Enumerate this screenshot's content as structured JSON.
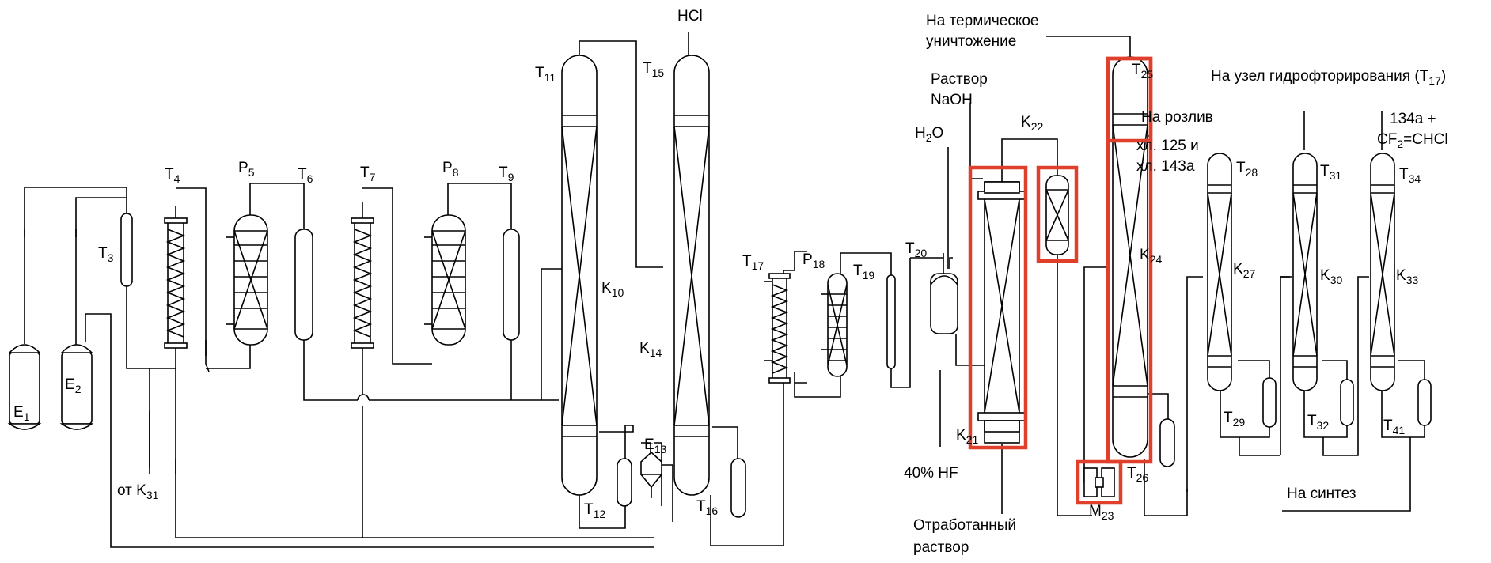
{
  "labels": {
    "E1": [
      "E",
      "1"
    ],
    "E2": [
      "E",
      "2"
    ],
    "T3": [
      "T",
      "3"
    ],
    "T4": [
      "T",
      "4"
    ],
    "P5": [
      "P",
      "5"
    ],
    "T6": [
      "T",
      "6"
    ],
    "T7": [
      "T",
      "7"
    ],
    "P8": [
      "P",
      "8"
    ],
    "T9": [
      "T",
      "9"
    ],
    "K10": [
      "K",
      "10"
    ],
    "T11": [
      "T",
      "11"
    ],
    "T12": [
      "T",
      "12"
    ],
    "E13": [
      "E",
      "13"
    ],
    "K14": [
      "K",
      "14"
    ],
    "T15": [
      "T",
      "15"
    ],
    "T16": [
      "T",
      "16"
    ],
    "T17": [
      "T",
      "17"
    ],
    "P18": [
      "P",
      "18"
    ],
    "T19": [
      "T",
      "19"
    ],
    "T20": [
      "T",
      "20"
    ],
    "K21": [
      "K",
      "21"
    ],
    "K22": [
      "K",
      "22"
    ],
    "M23": [
      "M",
      "23"
    ],
    "K24": [
      "K",
      "24"
    ],
    "T25": [
      "T",
      "25"
    ],
    "T26": [
      "T",
      "26"
    ],
    "K27": [
      "K",
      "27"
    ],
    "T28": [
      "T",
      "28"
    ],
    "T29": [
      "T",
      "29"
    ],
    "K30": [
      "K",
      "30"
    ],
    "T31": [
      "T",
      "31"
    ],
    "T32": [
      "T",
      "32"
    ],
    "K33": [
      "K",
      "33"
    ],
    "T34": [
      "T",
      "34"
    ],
    "T41": [
      "T",
      "41"
    ]
  },
  "streams": {
    "ot_k31": [
      "от K",
      "31"
    ],
    "hcl": "HCl",
    "thermal_1": "На термическое",
    "thermal_2": "уничтожение",
    "naoh_1": "Раствор",
    "naoh_2": "NaOH",
    "h2o": [
      "H",
      "2",
      "O"
    ],
    "hf": "40% HF",
    "spent_1": "Отработанный",
    "spent_2": "раствор",
    "bottling_1": "На розлив",
    "bottling_2": "хл. 125 и",
    "bottling_3": "хл. 143а",
    "hydrofluor": [
      "На узел гидрофторирования (T",
      "17",
      ")"
    ],
    "product_1": "134a +",
    "product_2": [
      "CF",
      "2",
      "=CHCl"
    ],
    "synthesis": "На синтез"
  },
  "colors": {
    "line": "#000000",
    "highlight": "#e0402b",
    "background": "#ffffff"
  }
}
